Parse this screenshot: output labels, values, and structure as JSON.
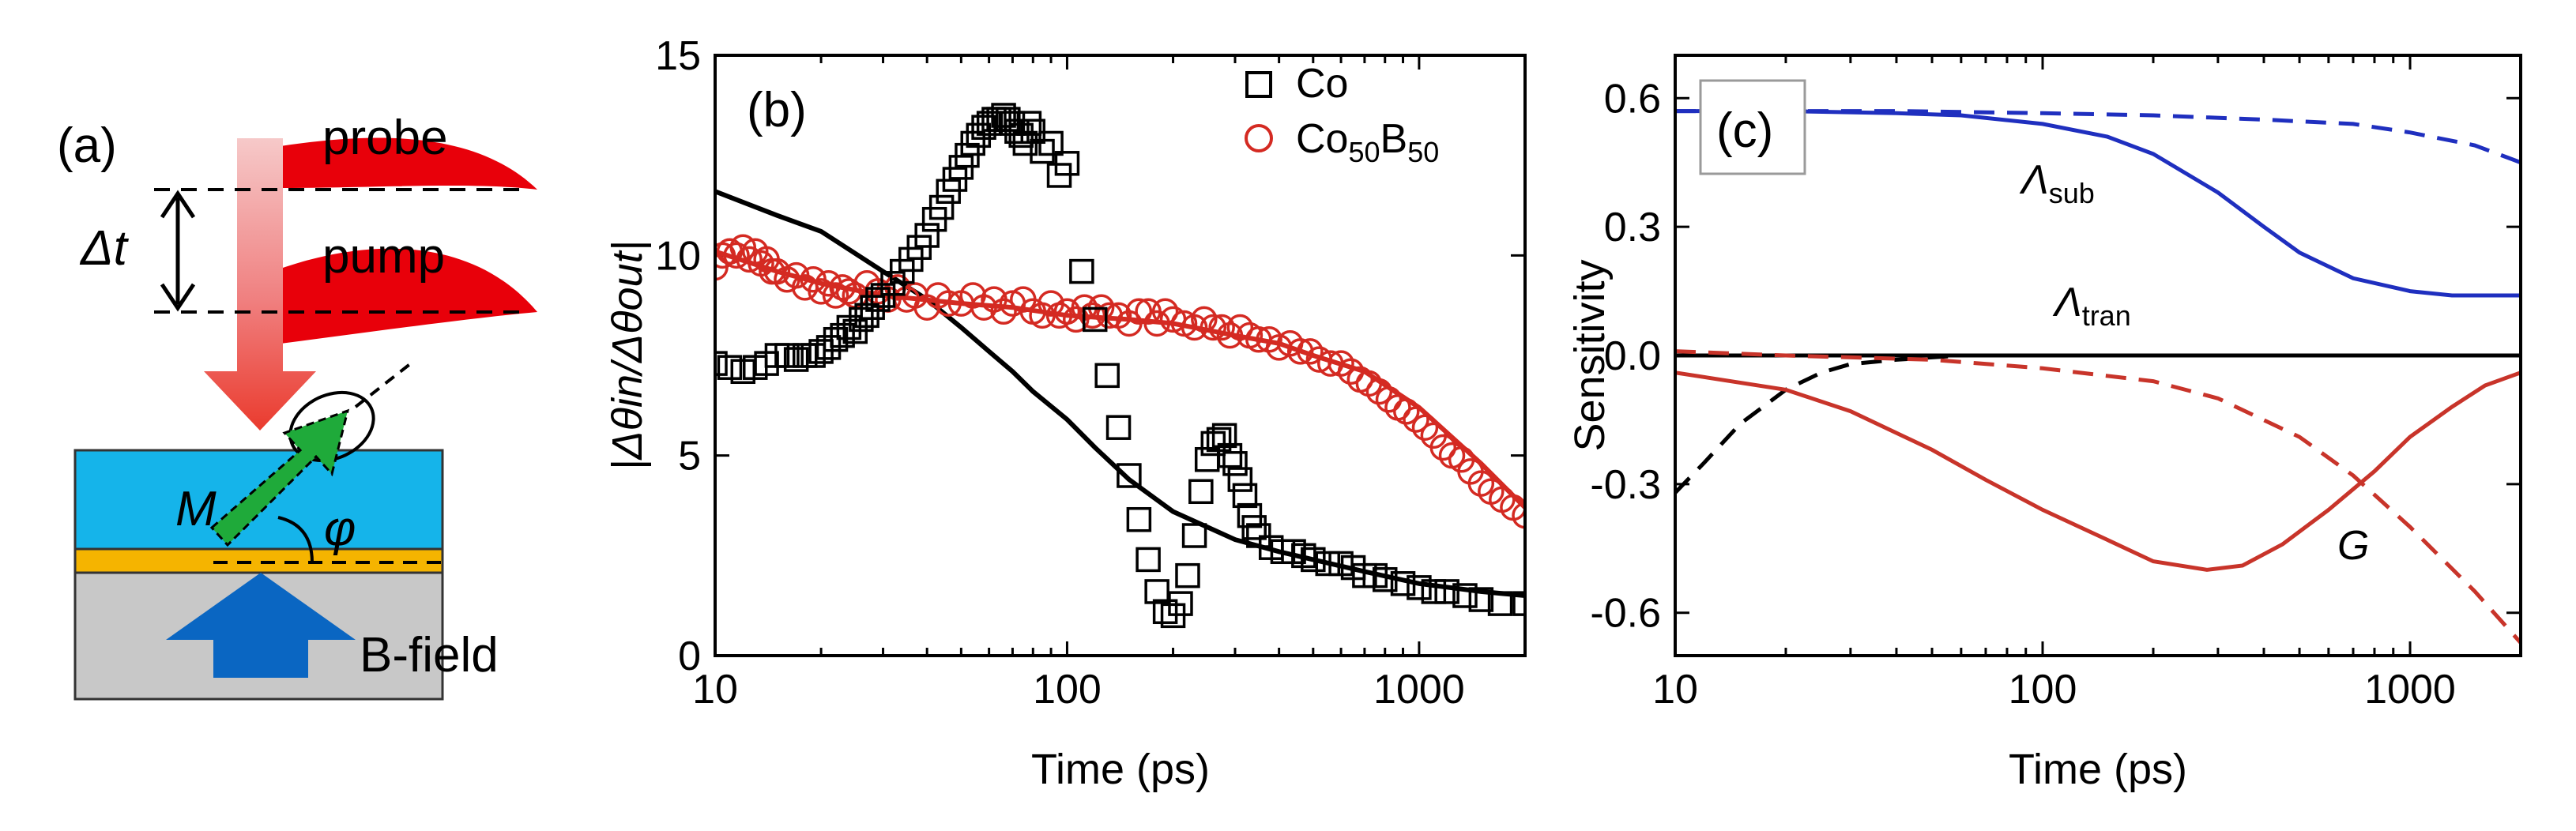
{
  "schematic": {
    "panel_label": "(a)",
    "probe_label": "probe",
    "pump_label": "pump",
    "delay_label": "Δt",
    "magnetization_label": "M",
    "angle_label": "φ",
    "field_label": "B-field"
  },
  "colors": {
    "co_markers": "#000000",
    "cob_markers": "#d42a22",
    "fit_black": "#000000",
    "fit_red": "#d42a22",
    "lambda_sub": "#1f2fbf",
    "g_curve": "#c8342a",
    "lambda_tran": "#000000",
    "pulse_red": "#e8000a",
    "layer_blue": "#15b4ea",
    "layer_gold": "#f5b400",
    "substrate_gray": "#c8c8c8",
    "field_arrow": "#0a66c2",
    "m_arrow": "#1faa3a"
  },
  "chart_data": [
    {
      "id": "b",
      "type": "scatter",
      "panel_label": "(b)",
      "xlabel": "Time (ps)",
      "ylabel": "|Δθin/Δθout|",
      "xscale": "log",
      "xlim": [
        10,
        2000
      ],
      "ylim": [
        0,
        15
      ],
      "xticks": [
        10,
        100,
        1000
      ],
      "xtick_labels": [
        "10",
        "100",
        "1000"
      ],
      "yticks": [
        0,
        5,
        10,
        15
      ],
      "ytick_labels": [
        "0",
        "5",
        "10",
        "15"
      ],
      "legend_position": "top-right",
      "series": [
        {
          "name": "Co",
          "legend_label": "Co",
          "marker": "square",
          "x": [
            10,
            11,
            12,
            13,
            14,
            15,
            16,
            17,
            18,
            19,
            20,
            21,
            22,
            23,
            24,
            25,
            26,
            27,
            28,
            29,
            30,
            32,
            34,
            36,
            38,
            40,
            42,
            44,
            46,
            48,
            50,
            52,
            54,
            56,
            58,
            60,
            62,
            64,
            66,
            68,
            70,
            72,
            74,
            76,
            78,
            80,
            85,
            90,
            95,
            100,
            110,
            120,
            130,
            140,
            150,
            160,
            170,
            180,
            190,
            200,
            210,
            220,
            230,
            240,
            250,
            260,
            270,
            280,
            290,
            300,
            310,
            320,
            330,
            340,
            350,
            380,
            410,
            440,
            470,
            500,
            550,
            600,
            650,
            700,
            750,
            800,
            900,
            1000,
            1100,
            1200,
            1350,
            1500,
            1700,
            2000
          ],
          "y": [
            7.3,
            7.2,
            7.1,
            7.2,
            7.3,
            7.5,
            7.5,
            7.4,
            7.5,
            7.5,
            7.6,
            7.7,
            7.9,
            8.0,
            8.2,
            8.1,
            8.4,
            8.5,
            8.7,
            8.9,
            9.0,
            9.3,
            9.6,
            9.9,
            10.2,
            10.5,
            10.9,
            11.2,
            11.6,
            11.9,
            12.2,
            12.5,
            12.8,
            13.0,
            13.2,
            13.3,
            13.4,
            13.4,
            13.5,
            13.4,
            13.3,
            13.1,
            13.0,
            12.8,
            13.3,
            13.1,
            12.6,
            12.8,
            12.0,
            12.3,
            9.6,
            8.4,
            7.0,
            5.7,
            4.5,
            3.4,
            2.4,
            1.6,
            1.1,
            1.0,
            1.3,
            2.0,
            3.0,
            4.1,
            4.9,
            5.3,
            5.4,
            5.5,
            5.0,
            4.8,
            4.4,
            4.0,
            3.5,
            3.2,
            3.0,
            2.7,
            2.6,
            2.6,
            2.5,
            2.4,
            2.3,
            2.3,
            2.2,
            2.0,
            2.0,
            1.9,
            1.8,
            1.7,
            1.6,
            1.6,
            1.5,
            1.4,
            1.3,
            1.3
          ]
        },
        {
          "name": "Co50B50",
          "legend_label_main": "Co",
          "legend_label_sub1": "50",
          "legend_label_mid": "B",
          "legend_label_sub2": "50",
          "marker": "circle",
          "x": [
            10,
            10.5,
            11,
            11.5,
            12,
            12.5,
            13,
            13.5,
            14,
            14.5,
            15,
            16,
            17,
            18,
            19,
            20,
            21,
            22,
            23,
            24,
            25,
            27,
            29,
            31,
            33,
            35,
            37,
            40,
            43,
            46,
            50,
            54,
            58,
            62,
            66,
            70,
            75,
            80,
            85,
            90,
            95,
            100,
            106,
            112,
            118,
            125,
            132,
            140,
            150,
            160,
            170,
            180,
            190,
            200,
            215,
            230,
            245,
            260,
            275,
            290,
            310,
            330,
            350,
            375,
            400,
            430,
            460,
            490,
            520,
            560,
            600,
            640,
            680,
            720,
            770,
            820,
            870,
            920,
            980,
            1040,
            1100,
            1170,
            1240,
            1320,
            1400,
            1500,
            1600,
            1720,
            1850,
            2000
          ],
          "y": [
            9.7,
            10.0,
            10.1,
            10.0,
            10.2,
            9.9,
            10.1,
            9.8,
            9.9,
            9.6,
            9.6,
            9.4,
            9.5,
            9.2,
            9.4,
            9.1,
            9.3,
            9.0,
            9.2,
            9.1,
            9.0,
            9.3,
            9.1,
            8.9,
            9.2,
            8.9,
            9.0,
            8.7,
            9.0,
            8.8,
            8.8,
            9.0,
            8.7,
            8.9,
            8.6,
            8.8,
            8.9,
            8.6,
            8.5,
            8.8,
            8.5,
            8.6,
            8.4,
            8.7,
            8.5,
            8.7,
            8.5,
            8.5,
            8.3,
            8.6,
            8.6,
            8.3,
            8.6,
            8.4,
            8.3,
            8.2,
            8.4,
            8.2,
            8.2,
            8.0,
            8.2,
            8.0,
            7.9,
            7.9,
            7.7,
            7.8,
            7.6,
            7.6,
            7.4,
            7.3,
            7.3,
            7.1,
            6.9,
            6.8,
            6.6,
            6.4,
            6.2,
            6.1,
            5.9,
            5.7,
            5.5,
            5.2,
            5.0,
            4.9,
            4.6,
            4.3,
            4.1,
            3.9,
            3.7,
            3.5
          ]
        }
      ],
      "fits": [
        {
          "name": "Co fit",
          "x": [
            10,
            15,
            20,
            30,
            40,
            50,
            60,
            70,
            80,
            100,
            120,
            150,
            200,
            300,
            400,
            500,
            700,
            1000,
            1500,
            2000
          ],
          "y": [
            11.6,
            11.0,
            10.6,
            9.6,
            8.9,
            8.2,
            7.6,
            7.1,
            6.6,
            5.9,
            5.2,
            4.4,
            3.6,
            2.9,
            2.6,
            2.4,
            2.1,
            1.8,
            1.6,
            1.5
          ]
        },
        {
          "name": "Co50B50 fit",
          "x": [
            10,
            15,
            20,
            30,
            50,
            70,
            100,
            150,
            200,
            300,
            400,
            500,
            700,
            1000,
            1500,
            2000
          ],
          "y": [
            10.1,
            9.6,
            9.3,
            9.0,
            8.8,
            8.7,
            8.5,
            8.4,
            8.3,
            8.0,
            7.8,
            7.5,
            7.1,
            6.2,
            4.8,
            3.7
          ]
        }
      ]
    },
    {
      "id": "c",
      "type": "line",
      "panel_label": "(c)",
      "xlabel": "Time (ps)",
      "ylabel": "Sensitivity",
      "xscale": "log",
      "xlim": [
        10,
        2000
      ],
      "ylim": [
        -0.7,
        0.7
      ],
      "xticks": [
        10,
        100,
        1000
      ],
      "xtick_labels": [
        "10",
        "100",
        "1000"
      ],
      "yticks": [
        0.6,
        0.3,
        0.0,
        -0.3,
        -0.6
      ],
      "ytick_labels": [
        "0.6",
        "0.3",
        "0.0",
        "-0.3",
        "-0.6"
      ],
      "series": [
        {
          "name": "Lambda_sub solid",
          "style": "solid",
          "x": [
            10,
            20,
            40,
            60,
            100,
            150,
            200,
            300,
            400,
            500,
            700,
            1000,
            1300,
            1600,
            2000
          ],
          "y": [
            0.57,
            0.57,
            0.565,
            0.56,
            0.54,
            0.51,
            0.47,
            0.38,
            0.3,
            0.24,
            0.18,
            0.15,
            0.14,
            0.14,
            0.14
          ]
        },
        {
          "name": "Lambda_sub dashed",
          "style": "dashed",
          "x": [
            10,
            40,
            100,
            200,
            400,
            700,
            1000,
            1500,
            2000
          ],
          "y": [
            0.57,
            0.57,
            0.565,
            0.56,
            0.55,
            0.54,
            0.52,
            0.49,
            0.45
          ]
        },
        {
          "name": "Lambda_tran solid",
          "style": "solid",
          "x": [
            10,
            2000
          ],
          "y": [
            0.0,
            0.0
          ]
        },
        {
          "name": "Lambda_tran dashed",
          "style": "dashed",
          "x": [
            10,
            12,
            15,
            20,
            25,
            30,
            40,
            60,
            100,
            2000
          ],
          "y": [
            -0.32,
            -0.25,
            -0.16,
            -0.08,
            -0.04,
            -0.02,
            -0.01,
            0.0,
            0.0,
            0.0
          ]
        },
        {
          "name": "G solid",
          "style": "solid",
          "x": [
            10,
            20,
            30,
            50,
            70,
            100,
            150,
            200,
            280,
            350,
            450,
            600,
            800,
            1000,
            1300,
            1600,
            2000
          ],
          "y": [
            -0.04,
            -0.08,
            -0.13,
            -0.22,
            -0.29,
            -0.36,
            -0.43,
            -0.48,
            -0.5,
            -0.49,
            -0.44,
            -0.36,
            -0.27,
            -0.19,
            -0.12,
            -0.07,
            -0.04
          ]
        },
        {
          "name": "G dashed",
          "style": "dashed",
          "x": [
            10,
            20,
            50,
            100,
            200,
            300,
            500,
            700,
            1000,
            1500,
            2000
          ],
          "y": [
            0.01,
            0.0,
            -0.01,
            -0.03,
            -0.06,
            -0.1,
            -0.19,
            -0.28,
            -0.4,
            -0.55,
            -0.67
          ]
        }
      ],
      "annotations": {
        "lambda_sub_main": "Λ",
        "lambda_sub_sub": "sub",
        "lambda_tran_main": "Λ",
        "lambda_tran_sub": "tran",
        "g_label": "G"
      }
    }
  ]
}
